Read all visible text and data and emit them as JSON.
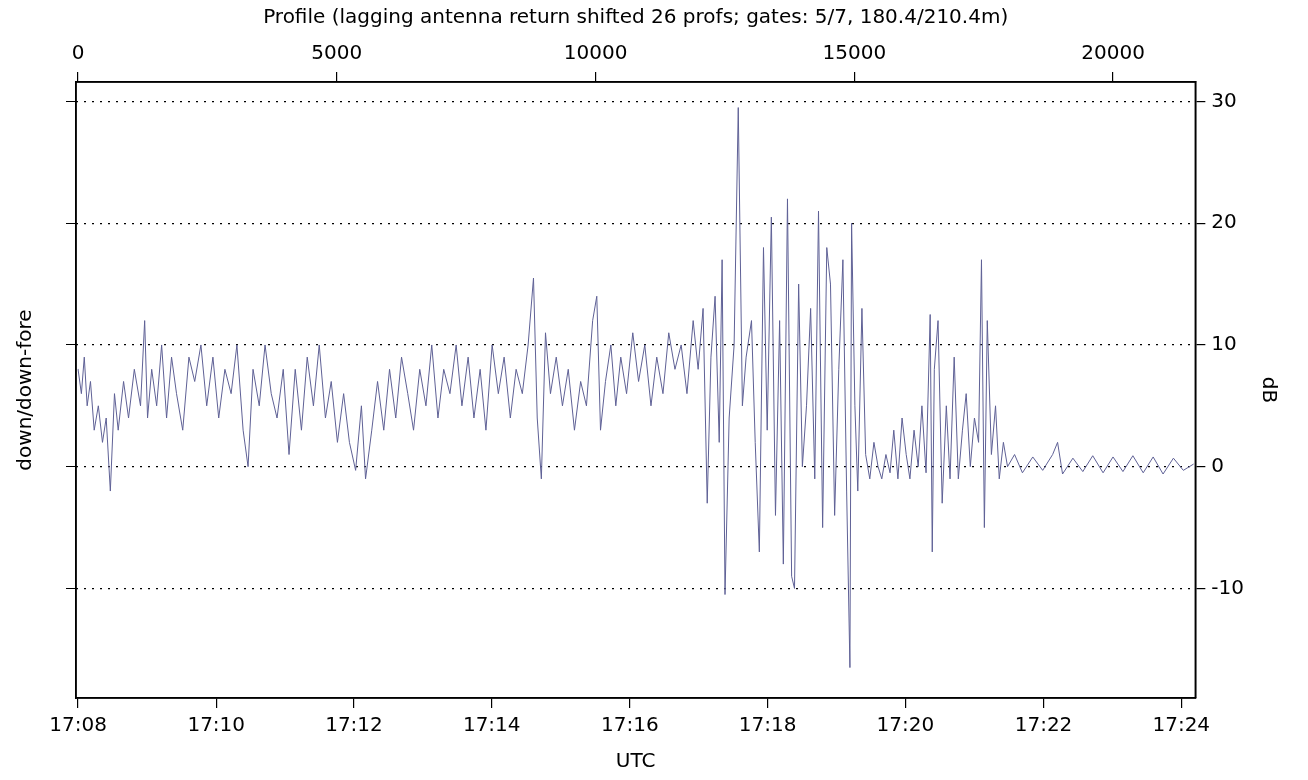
{
  "chart_data": {
    "type": "line",
    "x2label": "Profile (lagging antenna return shifted 26 profs; gates: 5/7, 180.4/210.4m)",
    "xlabel": "UTC",
    "ylabel": "dB",
    "annotations": [
      "down/down-fore"
    ],
    "xlim": [
      17.1328,
      17.4034
    ],
    "xticks": [
      {
        "value": 17.1333,
        "label": "17:08"
      },
      {
        "value": 17.1667,
        "label": "17:10"
      },
      {
        "value": 17.2,
        "label": "17:12"
      },
      {
        "value": 17.2333,
        "label": "17:14"
      },
      {
        "value": 17.2667,
        "label": "17:16"
      },
      {
        "value": 17.3,
        "label": "17:18"
      },
      {
        "value": 17.3333,
        "label": "17:20"
      },
      {
        "value": 17.3667,
        "label": "17:22"
      },
      {
        "value": 17.4,
        "label": "17:24"
      }
    ],
    "x2lim": [
      -40,
      21590
    ],
    "x2ticks": [
      0,
      5000,
      10000,
      15000,
      20000
    ],
    "ylim": [
      -19,
      31.6
    ],
    "yticks": [
      -10,
      0,
      10,
      20,
      30
    ],
    "grid": "y",
    "legend": false,
    "marker": "none",
    "line_style": "solid",
    "x": [
      17.1333,
      17.1341,
      17.1348,
      17.1355,
      17.1363,
      17.1372,
      17.1382,
      17.1392,
      17.1401,
      17.1411,
      17.1421,
      17.143,
      17.1443,
      17.1455,
      17.1469,
      17.1484,
      17.1494,
      17.1501,
      17.1511,
      17.1523,
      17.1535,
      17.1547,
      17.1559,
      17.1571,
      17.1586,
      17.1601,
      17.1615,
      17.163,
      17.1644,
      17.1659,
      17.1673,
      17.1688,
      17.1703,
      17.1717,
      17.1732,
      17.1744,
      17.1756,
      17.1771,
      17.1785,
      17.18,
      17.1814,
      17.1829,
      17.1843,
      17.1858,
      17.1873,
      17.1887,
      17.1902,
      17.1916,
      17.1931,
      17.1945,
      17.196,
      17.1975,
      17.1989,
      17.2004,
      17.2018,
      17.2028,
      17.2043,
      17.2057,
      17.2072,
      17.2086,
      17.2101,
      17.2115,
      17.213,
      17.2144,
      17.2159,
      17.2174,
      17.2188,
      17.2203,
      17.2217,
      17.2232,
      17.2247,
      17.2261,
      17.2276,
      17.229,
      17.2305,
      17.2319,
      17.2334,
      17.2349,
      17.2363,
      17.2378,
      17.2392,
      17.2407,
      17.2421,
      17.2434,
      17.2443,
      17.2453,
      17.2463,
      17.2475,
      17.2489,
      17.2504,
      17.2518,
      17.2533,
      17.2548,
      17.2562,
      17.2577,
      17.2587,
      17.2596,
      17.2608,
      17.2621,
      17.2633,
      17.2645,
      17.2659,
      17.2674,
      17.2688,
      17.2703,
      17.2718,
      17.2732,
      17.2747,
      17.2761,
      17.2776,
      17.2791,
      17.2805,
      17.282,
      17.2832,
      17.2844,
      17.2854,
      17.2863,
      17.2873,
      17.2883,
      17.289,
      17.2897,
      17.2907,
      17.2919,
      17.2929,
      17.2939,
      17.2948,
      17.2961,
      17.297,
      17.298,
      17.299,
      17.2999,
      17.3009,
      17.3019,
      17.3029,
      17.3038,
      17.3048,
      17.3058,
      17.3065,
      17.3075,
      17.3084,
      17.3094,
      17.3104,
      17.3114,
      17.3123,
      17.3133,
      17.3143,
      17.3152,
      17.3162,
      17.3172,
      17.3182,
      17.3191,
      17.3199,
      17.3203,
      17.3211,
      17.3218,
      17.3228,
      17.3237,
      17.3247,
      17.3257,
      17.3267,
      17.3276,
      17.3286,
      17.3296,
      17.3305,
      17.3315,
      17.3325,
      17.3335,
      17.3344,
      17.3354,
      17.3364,
      17.3373,
      17.3383,
      17.3393,
      17.3398,
      17.3403,
      17.3412,
      17.3422,
      17.3432,
      17.3441,
      17.3451,
      17.3461,
      17.3471,
      17.348,
      17.349,
      17.35,
      17.351,
      17.3517,
      17.3524,
      17.3531,
      17.3541,
      17.3551,
      17.356,
      17.357,
      17.358,
      17.3597,
      17.3616,
      17.3641,
      17.3665,
      17.3689,
      17.3701,
      17.3713,
      17.3738,
      17.3762,
      17.3786,
      17.3811,
      17.3835,
      17.3859,
      17.3883,
      17.3908,
      17.3932,
      17.3956,
      17.3981,
      17.4005,
      17.4029
    ],
    "series": [
      {
        "color": "#5f6196",
        "values": [
          8,
          6,
          9,
          5,
          7,
          3,
          5,
          2,
          4,
          -2,
          6,
          3,
          7,
          4,
          8,
          5,
          12,
          4,
          8,
          5,
          10,
          4,
          9,
          6,
          3,
          9,
          7,
          10,
          5,
          9,
          4,
          8,
          6,
          10,
          3,
          0,
          8,
          5,
          10,
          6,
          4,
          8,
          1,
          8,
          3,
          9,
          5,
          10,
          4,
          7,
          2,
          6,
          2,
          -0.3,
          5,
          -1,
          3,
          7,
          3,
          8,
          4,
          9,
          6,
          3,
          8,
          5,
          10,
          4,
          8,
          6,
          10,
          5,
          9,
          4,
          8,
          3,
          10,
          6,
          9,
          4,
          8,
          6,
          10,
          15.5,
          4,
          -1,
          11,
          6,
          9,
          5,
          8,
          3,
          7,
          5,
          12,
          14,
          3,
          7,
          10,
          5,
          9,
          6,
          11,
          7,
          10,
          5,
          9,
          6,
          11,
          8,
          10,
          6,
          12,
          8,
          13,
          -3,
          9,
          14,
          2,
          17,
          -10.5,
          4,
          10,
          29.5,
          5,
          9,
          12,
          2,
          -7,
          18,
          3,
          20.5,
          -4,
          12,
          -8,
          22,
          -9,
          -10,
          15,
          0,
          5,
          13,
          -1,
          21,
          -5,
          18,
          15,
          -4,
          8,
          17,
          -2,
          -16.5,
          20,
          5,
          -2,
          13,
          1,
          -1,
          2,
          0,
          -1,
          1,
          -0.5,
          3,
          -1,
          4,
          1,
          -1,
          3,
          0,
          5,
          -0.5,
          12.5,
          -7,
          8,
          12,
          -3,
          5,
          -1,
          9,
          -1,
          3,
          6,
          0,
          4,
          2,
          17,
          -5,
          12,
          1,
          5,
          -1,
          2,
          0,
          1,
          -0.5,
          0.8,
          -0.3,
          1,
          2,
          -0.6,
          0.7,
          -0.4,
          0.9,
          -0.5,
          0.8,
          -0.4,
          0.9,
          -0.5,
          0.8,
          -0.6,
          0.7,
          -0.3,
          0.2
        ]
      }
    ]
  }
}
